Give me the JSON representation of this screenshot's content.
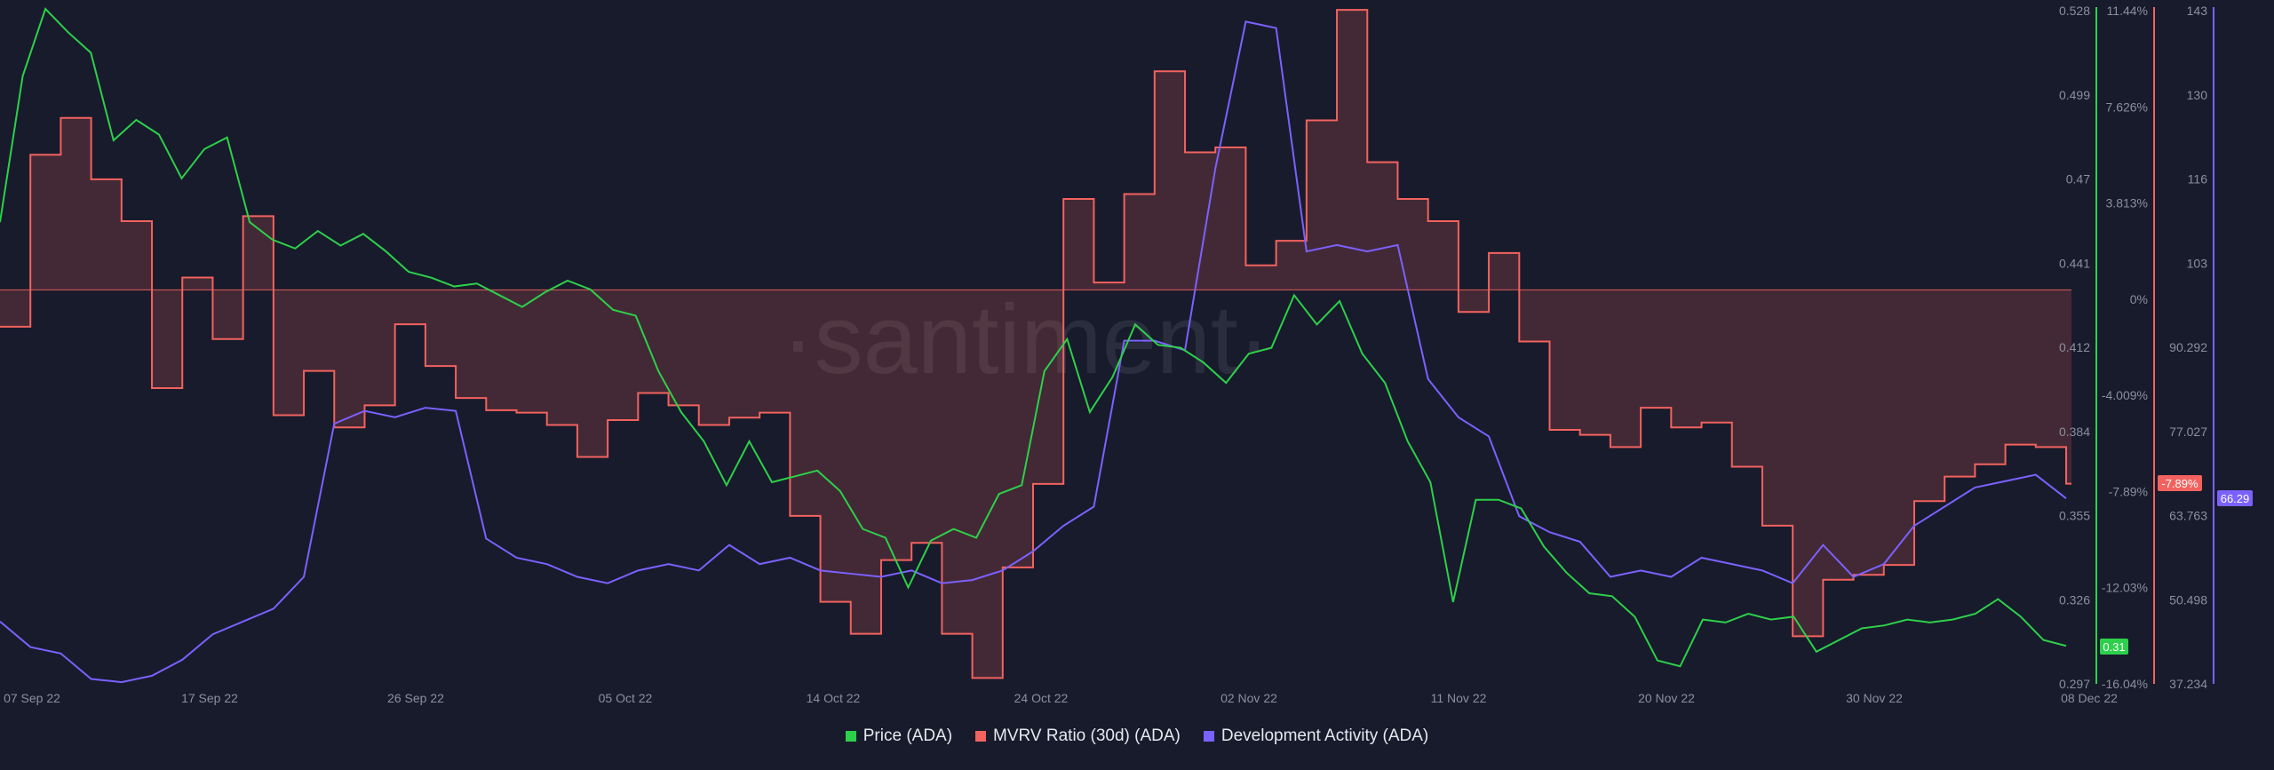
{
  "watermark": "·santiment·",
  "chart_data": {
    "type": "line",
    "x_axis": {
      "ticks": [
        "07 Sep 22",
        "17 Sep 22",
        "26 Sep 22",
        "05 Oct 22",
        "14 Oct 22",
        "24 Oct 22",
        "02 Nov 22",
        "11 Nov 22",
        "20 Nov 22",
        "30 Nov 22",
        "08 Dec 22"
      ]
    },
    "axes": {
      "price": {
        "ticks": [
          "0.528",
          "0.499",
          "0.47",
          "0.441",
          "0.412",
          "0.384",
          "0.355",
          "0.326",
          "0.297"
        ],
        "ylim": [
          0.297,
          0.528
        ],
        "color": "#2dd04a"
      },
      "mvrv": {
        "ticks": [
          "11.44%",
          "7.626%",
          "3.813%",
          "0%",
          "-4.009%",
          "-7.89%",
          "-12.03%",
          "-16.04%"
        ],
        "ylim": [
          -16.04,
          11.44
        ],
        "color": "#f2625f"
      },
      "dev": {
        "ticks": [
          "143",
          "130",
          "116",
          "103",
          "90.292",
          "77.027",
          "63.763",
          "50.498",
          "37.234"
        ],
        "ylim": [
          37.234,
          143
        ],
        "color": "#7b61ff"
      }
    },
    "current_values": {
      "price": "0.31",
      "mvrv": "-7.89%",
      "dev": "66.29"
    },
    "series": [
      {
        "name": "Price (ADA)",
        "color": "#2dd04a",
        "axis": "price",
        "points": [
          [
            0,
            0.455
          ],
          [
            1,
            0.505
          ],
          [
            2,
            0.528
          ],
          [
            3,
            0.52
          ],
          [
            4,
            0.513
          ],
          [
            5,
            0.483
          ],
          [
            6,
            0.49
          ],
          [
            7,
            0.485
          ],
          [
            8,
            0.47
          ],
          [
            9,
            0.48
          ],
          [
            10,
            0.484
          ],
          [
            11,
            0.455
          ],
          [
            12,
            0.449
          ],
          [
            13,
            0.446
          ],
          [
            14,
            0.452
          ],
          [
            15,
            0.447
          ],
          [
            16,
            0.451
          ],
          [
            17,
            0.445
          ],
          [
            18,
            0.438
          ],
          [
            19,
            0.436
          ],
          [
            20,
            0.433
          ],
          [
            21,
            0.434
          ],
          [
            22,
            0.43
          ],
          [
            23,
            0.426
          ],
          [
            24,
            0.431
          ],
          [
            25,
            0.435
          ],
          [
            26,
            0.432
          ],
          [
            27,
            0.425
          ],
          [
            28,
            0.423
          ],
          [
            29,
            0.404
          ],
          [
            30,
            0.39
          ],
          [
            31,
            0.38
          ],
          [
            32,
            0.365
          ],
          [
            33,
            0.38
          ],
          [
            34,
            0.366
          ],
          [
            35,
            0.368
          ],
          [
            36,
            0.37
          ],
          [
            37,
            0.363
          ],
          [
            38,
            0.35
          ],
          [
            39,
            0.347
          ],
          [
            40,
            0.33
          ],
          [
            41,
            0.346
          ],
          [
            42,
            0.35
          ],
          [
            43,
            0.347
          ],
          [
            44,
            0.362
          ],
          [
            45,
            0.365
          ],
          [
            46,
            0.404
          ],
          [
            47,
            0.415
          ],
          [
            48,
            0.39
          ],
          [
            49,
            0.402
          ],
          [
            50,
            0.42
          ],
          [
            51,
            0.413
          ],
          [
            52,
            0.412
          ],
          [
            53,
            0.407
          ],
          [
            54,
            0.4
          ],
          [
            55,
            0.41
          ],
          [
            56,
            0.412
          ],
          [
            57,
            0.43
          ],
          [
            58,
            0.42
          ],
          [
            59,
            0.428
          ],
          [
            60,
            0.41
          ],
          [
            61,
            0.4
          ],
          [
            62,
            0.38
          ],
          [
            63,
            0.366
          ],
          [
            64,
            0.325
          ],
          [
            65,
            0.36
          ],
          [
            66,
            0.36
          ],
          [
            67,
            0.357
          ],
          [
            68,
            0.344
          ],
          [
            69,
            0.335
          ],
          [
            70,
            0.328
          ],
          [
            71,
            0.327
          ],
          [
            72,
            0.32
          ],
          [
            73,
            0.305
          ],
          [
            74,
            0.303
          ],
          [
            75,
            0.319
          ],
          [
            76,
            0.318
          ],
          [
            77,
            0.321
          ],
          [
            78,
            0.319
          ],
          [
            79,
            0.32
          ],
          [
            80,
            0.308
          ],
          [
            81,
            0.312
          ],
          [
            82,
            0.316
          ],
          [
            83,
            0.317
          ],
          [
            84,
            0.319
          ],
          [
            85,
            0.318
          ],
          [
            86,
            0.319
          ],
          [
            87,
            0.321
          ],
          [
            88,
            0.326
          ],
          [
            89,
            0.32
          ],
          [
            90,
            0.312
          ],
          [
            91,
            0.31
          ]
        ]
      },
      {
        "name": "MVRV Ratio (30d) (ADA)",
        "color": "#f2625f",
        "axis": "mvrv",
        "points": [
          [
            0,
            -1.5
          ],
          [
            1,
            5.5
          ],
          [
            2,
            7.0
          ],
          [
            3,
            4.5
          ],
          [
            4,
            2.8
          ],
          [
            5,
            -4.0
          ],
          [
            6,
            0.5
          ],
          [
            7,
            -2.0
          ],
          [
            8,
            3.0
          ],
          [
            9,
            -5.1
          ],
          [
            10,
            -3.3
          ],
          [
            11,
            -5.6
          ],
          [
            12,
            -4.7
          ],
          [
            13,
            -1.4
          ],
          [
            14,
            -3.1
          ],
          [
            15,
            -4.4
          ],
          [
            16,
            -4.9
          ],
          [
            17,
            -5.0
          ],
          [
            18,
            -5.5
          ],
          [
            19,
            -6.8
          ],
          [
            20,
            -5.3
          ],
          [
            21,
            -4.2
          ],
          [
            22,
            -4.7
          ],
          [
            23,
            -5.5
          ],
          [
            24,
            -5.2
          ],
          [
            25,
            -5.0
          ],
          [
            26,
            -9.2
          ],
          [
            27,
            -12.7
          ],
          [
            28,
            -14.0
          ],
          [
            29,
            -11.0
          ],
          [
            30,
            -10.3
          ],
          [
            31,
            -14.0
          ],
          [
            32,
            -15.8
          ],
          [
            33,
            -11.3
          ],
          [
            34,
            -7.9
          ],
          [
            35,
            3.7
          ],
          [
            36,
            0.3
          ],
          [
            37,
            3.9
          ],
          [
            38,
            8.9
          ],
          [
            39,
            5.6
          ],
          [
            40,
            5.8
          ],
          [
            41,
            1.0
          ],
          [
            42,
            2.0
          ],
          [
            43,
            6.9
          ],
          [
            44,
            11.4
          ],
          [
            45,
            5.2
          ],
          [
            46,
            3.7
          ],
          [
            47,
            2.8
          ],
          [
            48,
            -0.9
          ],
          [
            49,
            1.5
          ],
          [
            50,
            -2.1
          ],
          [
            51,
            -5.7
          ],
          [
            52,
            -5.9
          ],
          [
            53,
            -6.4
          ],
          [
            54,
            -4.8
          ],
          [
            55,
            -5.6
          ],
          [
            56,
            -5.4
          ],
          [
            57,
            -7.2
          ],
          [
            58,
            -9.6
          ],
          [
            59,
            -14.1
          ],
          [
            60,
            -11.8
          ],
          [
            61,
            -11.6
          ],
          [
            62,
            -11.2
          ],
          [
            63,
            -8.6
          ],
          [
            64,
            -7.6
          ],
          [
            65,
            -7.1
          ],
          [
            66,
            -6.3
          ],
          [
            67,
            -6.4
          ],
          [
            68,
            -7.89
          ]
        ]
      },
      {
        "name": "Development Activity (ADA)",
        "color": "#7b61ff",
        "axis": "dev",
        "points": [
          [
            0,
            47
          ],
          [
            1,
            43
          ],
          [
            2,
            42
          ],
          [
            3,
            38
          ],
          [
            4,
            37.5
          ],
          [
            5,
            38.5
          ],
          [
            6,
            41
          ],
          [
            7,
            45
          ],
          [
            8,
            47
          ],
          [
            9,
            49
          ],
          [
            10,
            54
          ],
          [
            11,
            78
          ],
          [
            12,
            80
          ],
          [
            13,
            79
          ],
          [
            14,
            80.5
          ],
          [
            15,
            80
          ],
          [
            16,
            60
          ],
          [
            17,
            57
          ],
          [
            18,
            56
          ],
          [
            19,
            54
          ],
          [
            20,
            53
          ],
          [
            21,
            55
          ],
          [
            22,
            56
          ],
          [
            23,
            55
          ],
          [
            24,
            59
          ],
          [
            25,
            56
          ],
          [
            26,
            57
          ],
          [
            27,
            55
          ],
          [
            28,
            54.5
          ],
          [
            29,
            54
          ],
          [
            30,
            55
          ],
          [
            31,
            53
          ],
          [
            32,
            53.5
          ],
          [
            33,
            55
          ],
          [
            34,
            58
          ],
          [
            35,
            62
          ],
          [
            36,
            65
          ],
          [
            37,
            91
          ],
          [
            38,
            91
          ],
          [
            39,
            89.5
          ],
          [
            40,
            118
          ],
          [
            41,
            141
          ],
          [
            42,
            140
          ],
          [
            43,
            105
          ],
          [
            44,
            106
          ],
          [
            45,
            105
          ],
          [
            46,
            106
          ],
          [
            47,
            85
          ],
          [
            48,
            79
          ],
          [
            49,
            76
          ],
          [
            50,
            63.5
          ],
          [
            51,
            61
          ],
          [
            52,
            59.5
          ],
          [
            53,
            54
          ],
          [
            54,
            55
          ],
          [
            55,
            54
          ],
          [
            56,
            57
          ],
          [
            57,
            56
          ],
          [
            58,
            55
          ],
          [
            59,
            53
          ],
          [
            60,
            59
          ],
          [
            61,
            54
          ],
          [
            62,
            56
          ],
          [
            63,
            62
          ],
          [
            64,
            65
          ],
          [
            65,
            68
          ],
          [
            66,
            69
          ],
          [
            67,
            70
          ],
          [
            68,
            66.29
          ]
        ]
      }
    ],
    "grid": false,
    "legend": "bottom-center"
  },
  "legend": [
    {
      "label": "Price (ADA)",
      "color": "#2dd04a"
    },
    {
      "label": "MVRV Ratio (30d) (ADA)",
      "color": "#f2625f"
    },
    {
      "label": "Development Activity (ADA)",
      "color": "#7b61ff"
    }
  ]
}
